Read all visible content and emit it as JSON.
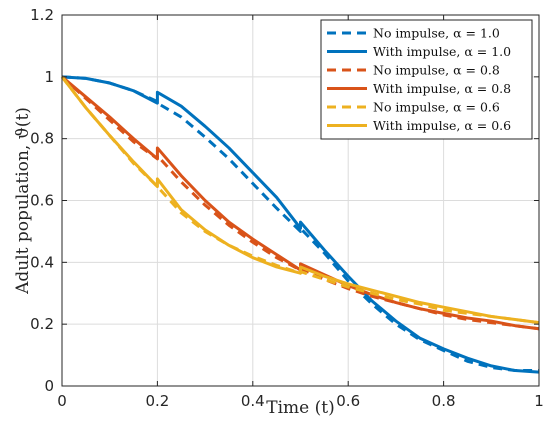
{
  "chart_data": {
    "type": "line",
    "title": "",
    "xlabel": "Time (t)",
    "ylabel": "Adult population, ϑ(t)",
    "xlim": [
      0,
      1
    ],
    "ylim": [
      0,
      1.2
    ],
    "xticks": [
      0,
      0.2,
      0.4,
      0.6,
      0.8,
      1
    ],
    "xtick_labels": [
      "0",
      "0.2",
      "0.4",
      "0.6",
      "0.8",
      "1"
    ],
    "yticks": [
      0,
      0.2,
      0.4,
      0.6,
      0.8,
      1,
      1.2
    ],
    "ytick_labels": [
      "0",
      "0.2",
      "0.4",
      "0.6",
      "0.8",
      "1",
      "1.2"
    ],
    "grid": true,
    "legend_position": "top-right",
    "series": [
      {
        "name": "No impulse, α = 1.0",
        "color": "#0072BD",
        "style": "dashed",
        "points": [
          [
            0,
            1.0
          ],
          [
            0.05,
            0.995
          ],
          [
            0.1,
            0.98
          ],
          [
            0.15,
            0.955
          ],
          [
            0.2,
            0.92
          ],
          [
            0.2,
            0.915
          ],
          [
            0.25,
            0.87
          ],
          [
            0.3,
            0.805
          ],
          [
            0.35,
            0.735
          ],
          [
            0.4,
            0.655
          ],
          [
            0.45,
            0.575
          ],
          [
            0.5,
            0.5
          ],
          [
            0.5,
            0.51
          ],
          [
            0.55,
            0.43
          ],
          [
            0.6,
            0.34
          ],
          [
            0.65,
            0.265
          ],
          [
            0.7,
            0.2
          ],
          [
            0.75,
            0.15
          ],
          [
            0.8,
            0.115
          ],
          [
            0.85,
            0.08
          ],
          [
            0.9,
            0.06
          ],
          [
            0.95,
            0.05
          ],
          [
            1.0,
            0.05
          ]
        ]
      },
      {
        "name": "With impulse, α = 1.0",
        "color": "#0072BD",
        "style": "solid",
        "points": [
          [
            0,
            1.0
          ],
          [
            0.05,
            0.995
          ],
          [
            0.1,
            0.98
          ],
          [
            0.15,
            0.955
          ],
          [
            0.2,
            0.915
          ],
          [
            0.2,
            0.95
          ],
          [
            0.25,
            0.905
          ],
          [
            0.3,
            0.84
          ],
          [
            0.35,
            0.77
          ],
          [
            0.4,
            0.69
          ],
          [
            0.45,
            0.61
          ],
          [
            0.5,
            0.51
          ],
          [
            0.5,
            0.53
          ],
          [
            0.55,
            0.44
          ],
          [
            0.6,
            0.355
          ],
          [
            0.65,
            0.275
          ],
          [
            0.7,
            0.21
          ],
          [
            0.75,
            0.155
          ],
          [
            0.8,
            0.12
          ],
          [
            0.85,
            0.09
          ],
          [
            0.9,
            0.065
          ],
          [
            0.95,
            0.05
          ],
          [
            1.0,
            0.045
          ]
        ]
      },
      {
        "name": "No impulse, α = 0.8",
        "color": "#D95319",
        "style": "dashed",
        "points": [
          [
            0,
            1.0
          ],
          [
            0.05,
            0.93
          ],
          [
            0.1,
            0.86
          ],
          [
            0.15,
            0.79
          ],
          [
            0.2,
            0.735
          ],
          [
            0.2,
            0.745
          ],
          [
            0.25,
            0.66
          ],
          [
            0.3,
            0.585
          ],
          [
            0.35,
            0.52
          ],
          [
            0.4,
            0.465
          ],
          [
            0.45,
            0.415
          ],
          [
            0.5,
            0.375
          ],
          [
            0.5,
            0.38
          ],
          [
            0.55,
            0.345
          ],
          [
            0.6,
            0.315
          ],
          [
            0.65,
            0.29
          ],
          [
            0.7,
            0.27
          ],
          [
            0.75,
            0.25
          ],
          [
            0.8,
            0.23
          ],
          [
            0.85,
            0.215
          ],
          [
            0.9,
            0.205
          ],
          [
            0.95,
            0.195
          ],
          [
            1.0,
            0.185
          ]
        ]
      },
      {
        "name": "With impulse, α = 0.8",
        "color": "#D95319",
        "style": "solid",
        "points": [
          [
            0,
            1.0
          ],
          [
            0.05,
            0.935
          ],
          [
            0.1,
            0.87
          ],
          [
            0.15,
            0.8
          ],
          [
            0.2,
            0.735
          ],
          [
            0.2,
            0.77
          ],
          [
            0.25,
            0.68
          ],
          [
            0.3,
            0.6
          ],
          [
            0.35,
            0.53
          ],
          [
            0.4,
            0.475
          ],
          [
            0.45,
            0.425
          ],
          [
            0.5,
            0.375
          ],
          [
            0.5,
            0.395
          ],
          [
            0.55,
            0.36
          ],
          [
            0.6,
            0.325
          ],
          [
            0.65,
            0.295
          ],
          [
            0.7,
            0.27
          ],
          [
            0.75,
            0.25
          ],
          [
            0.8,
            0.235
          ],
          [
            0.85,
            0.22
          ],
          [
            0.9,
            0.21
          ],
          [
            0.95,
            0.195
          ],
          [
            1.0,
            0.185
          ]
        ]
      },
      {
        "name": "No impulse, α = 0.6",
        "color": "#EDB120",
        "style": "dashed",
        "points": [
          [
            0,
            1.0
          ],
          [
            0.05,
            0.9
          ],
          [
            0.1,
            0.81
          ],
          [
            0.15,
            0.72
          ],
          [
            0.2,
            0.645
          ],
          [
            0.2,
            0.645
          ],
          [
            0.25,
            0.56
          ],
          [
            0.3,
            0.5
          ],
          [
            0.35,
            0.455
          ],
          [
            0.4,
            0.42
          ],
          [
            0.45,
            0.39
          ],
          [
            0.5,
            0.365
          ],
          [
            0.5,
            0.37
          ],
          [
            0.55,
            0.345
          ],
          [
            0.6,
            0.32
          ],
          [
            0.65,
            0.3
          ],
          [
            0.7,
            0.28
          ],
          [
            0.75,
            0.265
          ],
          [
            0.8,
            0.245
          ],
          [
            0.85,
            0.235
          ],
          [
            0.9,
            0.225
          ],
          [
            0.95,
            0.215
          ],
          [
            1.0,
            0.205
          ]
        ]
      },
      {
        "name": "With impulse, α = 0.6",
        "color": "#EDB120",
        "style": "solid",
        "points": [
          [
            0,
            1.0
          ],
          [
            0.05,
            0.9
          ],
          [
            0.1,
            0.81
          ],
          [
            0.15,
            0.725
          ],
          [
            0.2,
            0.645
          ],
          [
            0.2,
            0.67
          ],
          [
            0.25,
            0.57
          ],
          [
            0.3,
            0.505
          ],
          [
            0.35,
            0.455
          ],
          [
            0.4,
            0.415
          ],
          [
            0.45,
            0.385
          ],
          [
            0.5,
            0.365
          ],
          [
            0.5,
            0.385
          ],
          [
            0.55,
            0.355
          ],
          [
            0.6,
            0.33
          ],
          [
            0.65,
            0.31
          ],
          [
            0.7,
            0.29
          ],
          [
            0.75,
            0.27
          ],
          [
            0.8,
            0.255
          ],
          [
            0.8,
            0.255
          ],
          [
            0.85,
            0.24
          ],
          [
            0.9,
            0.225
          ],
          [
            0.95,
            0.215
          ],
          [
            1.0,
            0.205
          ]
        ]
      }
    ]
  }
}
